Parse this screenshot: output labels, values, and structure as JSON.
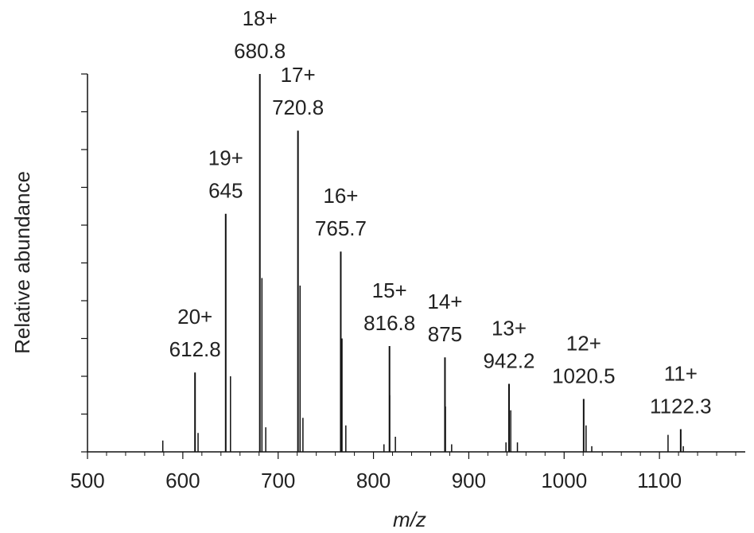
{
  "chart_data": {
    "type": "stick",
    "xlabel": "m/z",
    "ylabel": "Relative abundance",
    "x": [
      612.8,
      645,
      680.8,
      720.8,
      765.7,
      816.8,
      875,
      942.2,
      1020.5,
      1122.3
    ],
    "values": [
      21,
      63,
      100,
      85,
      53,
      28,
      25,
      18,
      14,
      6
    ],
    "charges": [
      "20+",
      "19+",
      "18+",
      "17+",
      "16+",
      "15+",
      "14+",
      "13+",
      "12+",
      "11+"
    ],
    "minor_x": [
      579,
      616,
      650,
      683,
      687,
      723,
      726,
      767,
      771,
      811,
      817,
      823,
      875.5,
      882,
      939,
      944,
      951,
      1023,
      1029,
      1109,
      1125
    ],
    "minor_values": [
      3,
      5,
      20,
      46,
      6.5,
      44,
      9,
      30,
      7,
      2,
      15,
      4,
      12,
      2,
      2.5,
      11,
      2.5,
      7,
      1.5,
      4.5,
      1.5
    ],
    "color": "#111111",
    "xlim": [
      500,
      1190
    ],
    "ylim": [
      0,
      100
    ],
    "xticks": [
      500,
      600,
      700,
      800,
      900,
      1000,
      1100
    ],
    "xminor_ticks": [
      520,
      540,
      560,
      580,
      620,
      640,
      660,
      680,
      720,
      740,
      760,
      780,
      820,
      840,
      860,
      880,
      920,
      940,
      960,
      980,
      1020,
      1040,
      1060,
      1080,
      1120,
      1140,
      1160,
      1180
    ],
    "yticks": [
      0,
      10,
      20,
      30,
      40,
      50,
      60,
      70,
      80,
      90,
      100
    ],
    "ytick_labels": false
  }
}
